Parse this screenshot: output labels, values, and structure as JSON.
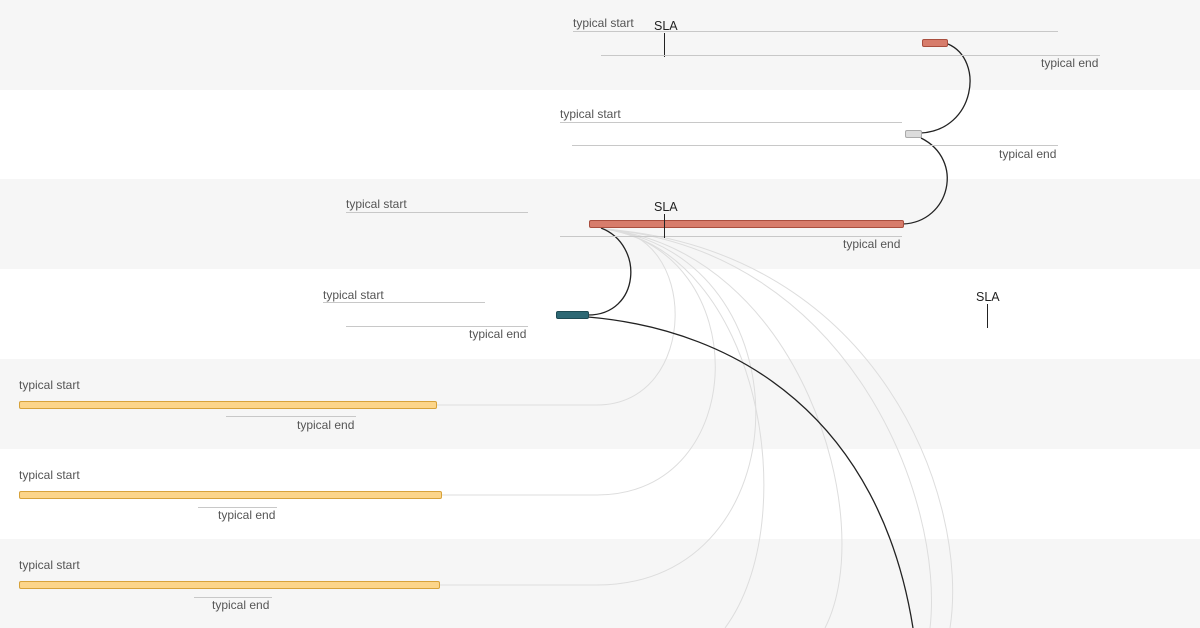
{
  "labels": {
    "typical_start": "typical start",
    "typical_end": "typical end",
    "sla": "SLA"
  },
  "colors": {
    "critical_task": "#d77c6b",
    "pending_task": "#dcdcdc",
    "running_task": "#2d6874",
    "upstream_task": "#fcd58a",
    "shaded_row": "#f6f6f6"
  },
  "rows": [
    {
      "status": "critical",
      "has_sla": true
    },
    {
      "status": "pending",
      "has_sla": false
    },
    {
      "status": "critical",
      "has_sla": true
    },
    {
      "status": "running",
      "has_sla": true
    },
    {
      "status": "upstream",
      "has_sla": false
    },
    {
      "status": "upstream",
      "has_sla": false
    },
    {
      "status": "upstream",
      "has_sla": false
    }
  ]
}
